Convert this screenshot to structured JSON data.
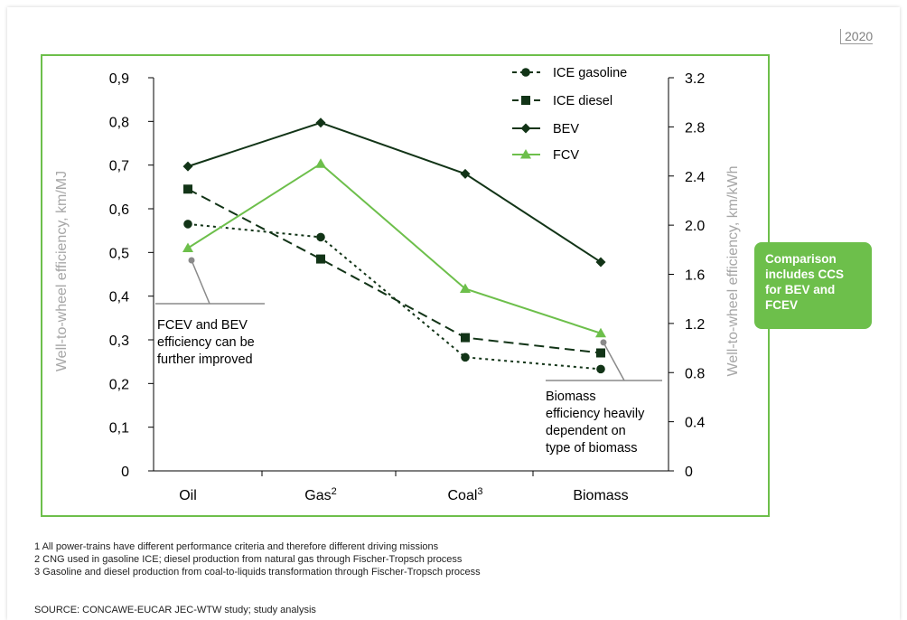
{
  "year_tag": "2020",
  "colors": {
    "frame": "#6dbf4b",
    "ice_gasoline": "#123417",
    "ice_diesel": "#123417",
    "bev": "#123417",
    "fcv": "#6dbf4b",
    "axis_label": "#a6a6a6",
    "callout_box": "#6dbf4b"
  },
  "chart_data": {
    "type": "line",
    "categories": [
      "Oil",
      "Gas",
      "Coal",
      "Biomass"
    ],
    "category_superscripts": [
      "",
      "2",
      "3",
      ""
    ],
    "ylabel": "Well-to-wheel efficiency, km/MJ",
    "ylabel_right": "Well-to-wheel efficiency, km/kWh",
    "ylim": [
      0,
      0.9
    ],
    "ylim_right": [
      0,
      3.2
    ],
    "yticks": [
      "0",
      "0,1",
      "0,2",
      "0,3",
      "0,4",
      "0,5",
      "0,6",
      "0,7",
      "0,8",
      "0,9"
    ],
    "yticks_right": [
      "0",
      "0.4",
      "0.8",
      "1.2",
      "1.6",
      "2.0",
      "2.4",
      "2.8",
      "3.2"
    ],
    "legend_position": "top-right",
    "series": [
      {
        "name": "ICE gasoline",
        "values": [
          0.565,
          0.535,
          0.26,
          0.233
        ],
        "style": "dotted",
        "marker": "circle"
      },
      {
        "name": "ICE diesel",
        "values": [
          0.645,
          0.485,
          0.305,
          0.27
        ],
        "style": "dashed",
        "marker": "square"
      },
      {
        "name": "BEV",
        "values": [
          0.697,
          0.797,
          0.68,
          0.478
        ],
        "style": "solid",
        "marker": "diamond"
      },
      {
        "name": "FCV",
        "values": [
          0.51,
          0.703,
          0.417,
          0.315
        ],
        "style": "solid",
        "marker": "triangle"
      }
    ],
    "annotations": [
      {
        "text_lines": [
          "FCEV and BEV",
          "efficiency can be",
          "further improved"
        ],
        "category": "Oil",
        "value": 0.482
      },
      {
        "text_lines": [
          "Biomass",
          "efficiency heavily",
          "dependent on",
          "type of biomass"
        ],
        "category": "Biomass",
        "value": 0.294
      }
    ]
  },
  "callout": {
    "lines": [
      "Comparison",
      "includes CCS",
      "for BEV and",
      "FCEV"
    ]
  },
  "footnotes": [
    "1 All power-trains have different performance criteria and therefore different driving missions",
    "2 CNG used in gasoline ICE; diesel production from natural gas through Fischer-Tropsch process",
    "3 Gasoline and diesel production from coal-to-liquids transformation through Fischer-Tropsch process"
  ],
  "source": "SOURCE: CONCAWE-EUCAR JEC-WTW study; study analysis"
}
